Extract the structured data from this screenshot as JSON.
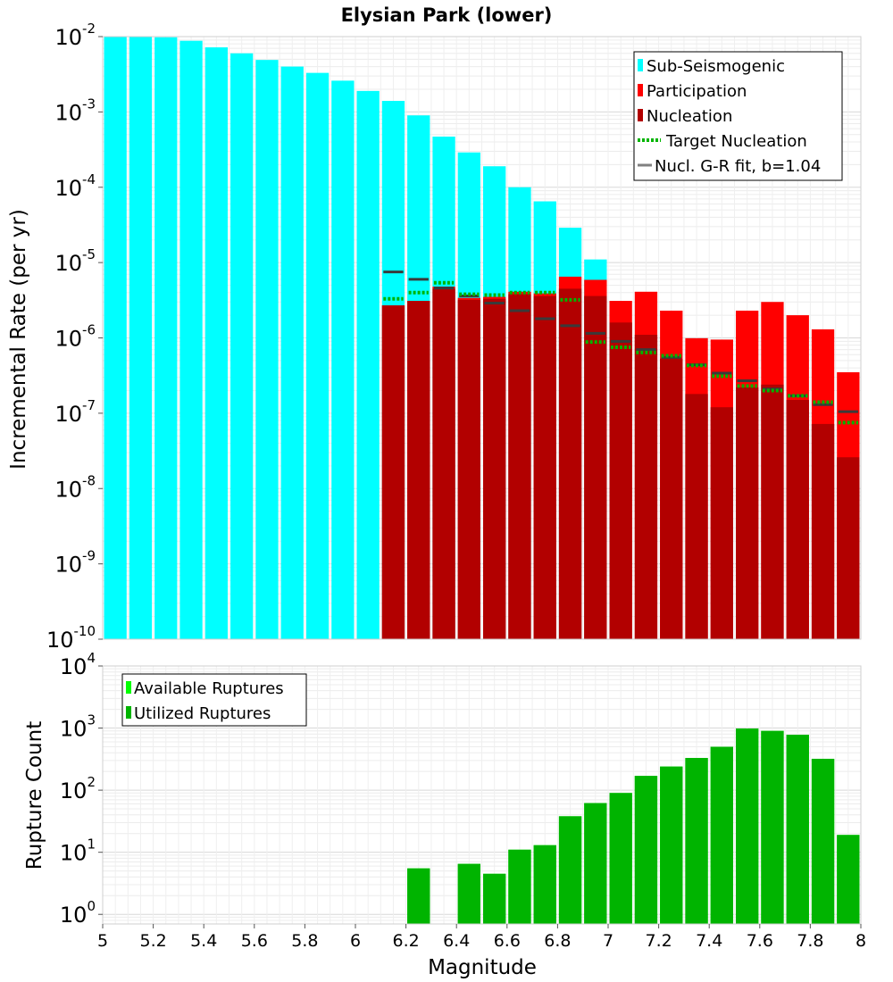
{
  "chart_data": [
    {
      "type": "bar",
      "title": "Elysian Park (lower)",
      "ylabel": "Incremental Rate (per yr)",
      "xlabel": "",
      "xlim": [
        5,
        8
      ],
      "ylim": [
        1e-10,
        0.01
      ],
      "yscale": "log",
      "grid": true,
      "legend_placement": "top-right",
      "ytick_labels": [
        {
          "base": "10",
          "exp": "-2",
          "value": 0.01
        },
        {
          "base": "10",
          "exp": "-3",
          "value": 0.001
        },
        {
          "base": "10",
          "exp": "-4",
          "value": 0.0001
        },
        {
          "base": "10",
          "exp": "-5",
          "value": 1e-05
        },
        {
          "base": "10",
          "exp": "-6",
          "value": 1e-06
        },
        {
          "base": "10",
          "exp": "-7",
          "value": 1e-07
        },
        {
          "base": "10",
          "exp": "-8",
          "value": 1e-08
        },
        {
          "base": "10",
          "exp": "-9",
          "value": 1e-09
        },
        {
          "base": "10",
          "exp": "-10",
          "value": 1e-10
        }
      ],
      "x": [
        5.05,
        5.15,
        5.25,
        5.35,
        5.45,
        5.55,
        5.65,
        5.75,
        5.85,
        5.95,
        6.05,
        6.15,
        6.25,
        6.35,
        6.45,
        6.55,
        6.65,
        6.75,
        6.85,
        6.95,
        7.05,
        7.15,
        7.25,
        7.35,
        7.45,
        7.55,
        7.65,
        7.75,
        7.85,
        7.95
      ],
      "series": [
        {
          "name": "Sub-Seismogenic",
          "color": "#00ffff",
          "style": "bar",
          "values": [
            0.01,
            0.01,
            0.0098,
            0.0088,
            0.0072,
            0.006,
            0.0049,
            0.004,
            0.0033,
            0.0026,
            0.0019,
            0.0014,
            0.0009,
            0.00047,
            0.00029,
            0.00019,
            0.0001,
            6.5e-05,
            2.9e-05,
            1.1e-05,
            null,
            null,
            null,
            null,
            null,
            null,
            null,
            null,
            null,
            null
          ]
        },
        {
          "name": "Participation",
          "color": "#ff0000",
          "style": "bar",
          "values": [
            null,
            null,
            null,
            null,
            null,
            null,
            null,
            null,
            null,
            null,
            null,
            2.7e-06,
            3.1e-06,
            4.8e-06,
            3.4e-06,
            3.5e-06,
            4.1e-06,
            3.9e-06,
            6.5e-06,
            5.9e-06,
            3.1e-06,
            4.1e-06,
            2.3e-06,
            9.9e-07,
            9.5e-07,
            2.3e-06,
            3e-06,
            2e-06,
            1.3e-06,
            3.5e-07
          ]
        },
        {
          "name": "Nucleation",
          "color": "#b20000",
          "style": "bar",
          "values": [
            null,
            null,
            null,
            null,
            null,
            null,
            null,
            null,
            null,
            null,
            null,
            2.7e-06,
            3.1e-06,
            4.5e-06,
            3.2e-06,
            3.3e-06,
            3.8e-06,
            3.6e-06,
            4.5e-06,
            3.6e-06,
            1.6e-06,
            1.1e-06,
            5.3e-07,
            1.8e-07,
            1.2e-07,
            2.2e-07,
            2.4e-07,
            1.5e-07,
            7.2e-08,
            2.6e-08
          ]
        },
        {
          "name": "Target Nucleation",
          "color": "#00b400",
          "style": "dotted-step",
          "values": [
            null,
            null,
            null,
            null,
            null,
            null,
            null,
            null,
            null,
            null,
            null,
            3.3e-06,
            4e-06,
            5.4e-06,
            3.8e-06,
            3.7e-06,
            4e-06,
            4e-06,
            3.2e-06,
            8.8e-07,
            7.5e-07,
            6.4e-07,
            5.8e-07,
            4.3e-07,
            3.1e-07,
            2.3e-07,
            2e-07,
            1.7e-07,
            1.4e-07,
            7.5e-08
          ]
        },
        {
          "name": "Nucl. G-R fit, b=1.04",
          "color": "#3a3a3a",
          "style": "step",
          "values": [
            null,
            null,
            null,
            null,
            null,
            null,
            null,
            null,
            null,
            null,
            null,
            7.5e-06,
            6e-06,
            4.6e-06,
            3.6e-06,
            2.9e-06,
            2.3e-06,
            1.8e-06,
            1.45e-06,
            1.15e-06,
            9e-07,
            7e-07,
            5.5e-07,
            4.4e-07,
            3.4e-07,
            2.7e-07,
            2.1e-07,
            1.7e-07,
            1.3e-07,
            1.05e-07
          ]
        }
      ]
    },
    {
      "type": "bar",
      "title": "",
      "ylabel": "Rupture Count",
      "xlabel": "Magnitude",
      "xlim": [
        5,
        8
      ],
      "ylim": [
        0.7,
        10000
      ],
      "yscale": "log",
      "grid": true,
      "legend_placement": "top-left",
      "ytick_labels": [
        {
          "base": "10",
          "exp": "4",
          "value": 10000
        },
        {
          "base": "10",
          "exp": "3",
          "value": 1000
        },
        {
          "base": "10",
          "exp": "2",
          "value": 100
        },
        {
          "base": "10",
          "exp": "1",
          "value": 10
        },
        {
          "base": "10",
          "exp": "0",
          "value": 1
        }
      ],
      "xtick_labels": [
        "5",
        "5.2",
        "5.4",
        "5.6",
        "5.8",
        "6",
        "6.2",
        "6.4",
        "6.6",
        "6.8",
        "7",
        "7.2",
        "7.4",
        "7.6",
        "7.8",
        "8"
      ],
      "xticks": [
        5,
        5.2,
        5.4,
        5.6,
        5.8,
        6,
        6.2,
        6.4,
        6.6,
        6.8,
        7,
        7.2,
        7.4,
        7.6,
        7.8,
        8
      ],
      "x": [
        6.05,
        6.15,
        6.25,
        6.35,
        6.45,
        6.55,
        6.65,
        6.75,
        6.85,
        6.95,
        7.05,
        7.15,
        7.25,
        7.35,
        7.45,
        7.55,
        7.65,
        7.75,
        7.85,
        7.95
      ],
      "series": [
        {
          "name": "Available Ruptures",
          "color": "#00ff00",
          "style": "bar",
          "values": [
            null,
            null,
            5.5,
            null,
            6.5,
            4.5,
            11,
            13,
            38,
            62,
            90,
            170,
            240,
            330,
            500,
            980,
            900,
            780,
            320,
            19
          ]
        },
        {
          "name": "Utilized Ruptures",
          "color": "#00b400",
          "style": "bar",
          "values": [
            null,
            null,
            5.5,
            null,
            6.5,
            4.5,
            11,
            13,
            38,
            62,
            90,
            170,
            240,
            330,
            500,
            980,
            900,
            780,
            320,
            19
          ]
        }
      ]
    }
  ]
}
